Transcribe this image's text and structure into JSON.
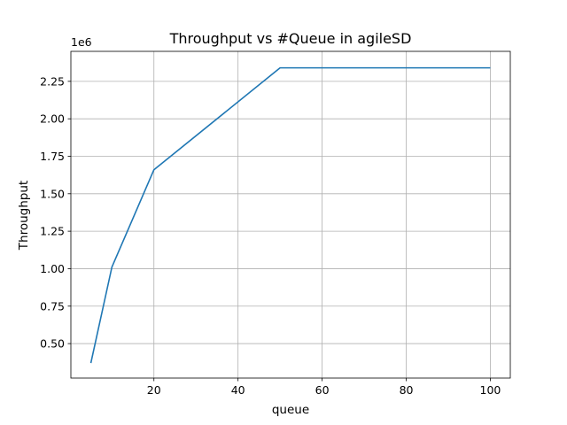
{
  "chart_data": {
    "type": "line",
    "title": "Throughput vs #Queue in agileSD",
    "xlabel": "queue",
    "ylabel": "Throughput",
    "y_offset_label": "1e6",
    "grid": true,
    "xlim": [
      0.25,
      104.75
    ],
    "ylim": [
      0.27,
      2.45
    ],
    "x_ticks": [
      20,
      40,
      60,
      80,
      100
    ],
    "x_tick_labels": [
      "20",
      "40",
      "60",
      "80",
      "100"
    ],
    "y_ticks": [
      0.5,
      0.75,
      1.0,
      1.25,
      1.5,
      1.75,
      2.0,
      2.25
    ],
    "y_tick_labels": [
      "0.50",
      "0.75",
      "1.00",
      "1.25",
      "1.50",
      "1.75",
      "2.00",
      "2.25"
    ],
    "series": [
      {
        "color": "#1f77b4",
        "x": [
          5,
          10,
          20,
          50,
          100
        ],
        "y": [
          0.37,
          1.01,
          1.66,
          2.34,
          2.34
        ]
      }
    ]
  }
}
